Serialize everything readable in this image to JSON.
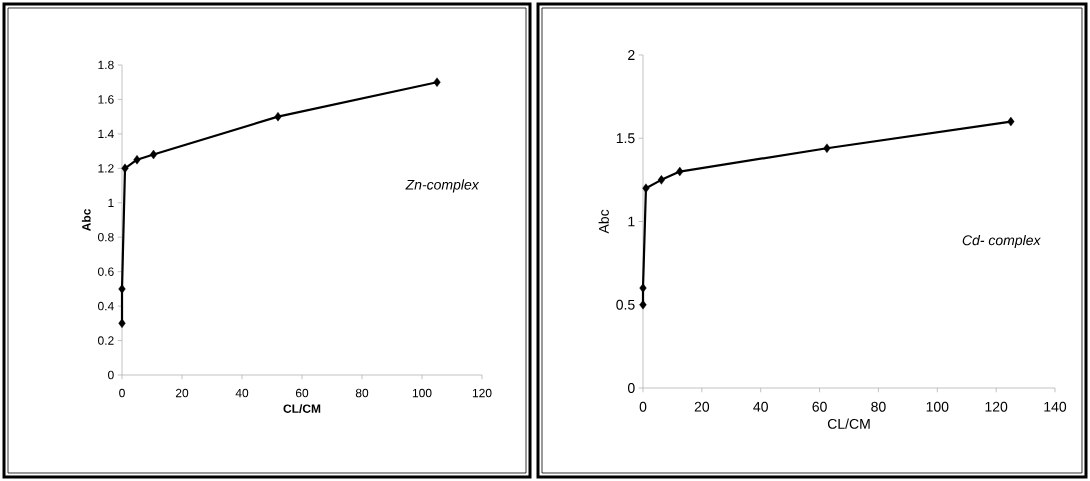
{
  "chart_data": [
    {
      "type": "line",
      "xlabel": "CL/CM",
      "ylabel": "Abc",
      "annotations": [
        "*Zn-complex*"
      ],
      "x": [
        0,
        0,
        1,
        5,
        10.5,
        52,
        105
      ],
      "values": [
        0.3,
        0.5,
        1.2,
        1.25,
        1.28,
        1.5,
        1.7
      ],
      "color": "#000000",
      "marker": "diamond",
      "line_style": "solid",
      "grid": false,
      "xlim": [
        0,
        120
      ],
      "xticks": [
        0,
        20,
        40,
        60,
        80,
        100,
        120
      ],
      "ylim": [
        0,
        1.8
      ],
      "yticks": [
        0,
        0.2,
        0.4,
        0.6,
        0.8,
        1,
        1.2,
        1.4,
        1.6,
        1.8
      ]
    },
    {
      "type": "line",
      "xlabel": "CL/CM",
      "ylabel": "Abc",
      "annotations": [
        "*Cd- complex*"
      ],
      "x": [
        0,
        0,
        1,
        6.25,
        12.5,
        62.5,
        125
      ],
      "values": [
        0.5,
        0.6,
        1.2,
        1.25,
        1.3,
        1.44,
        1.6
      ],
      "color": "#000000",
      "marker": "diamond",
      "line_style": "solid",
      "grid": false,
      "xlim": [
        0,
        140
      ],
      "xticks": [
        0,
        20,
        40,
        60,
        80,
        100,
        120,
        140
      ],
      "ylim": [
        0,
        2
      ],
      "yticks": [
        0,
        0.5,
        1,
        1.5,
        2
      ]
    }
  ]
}
